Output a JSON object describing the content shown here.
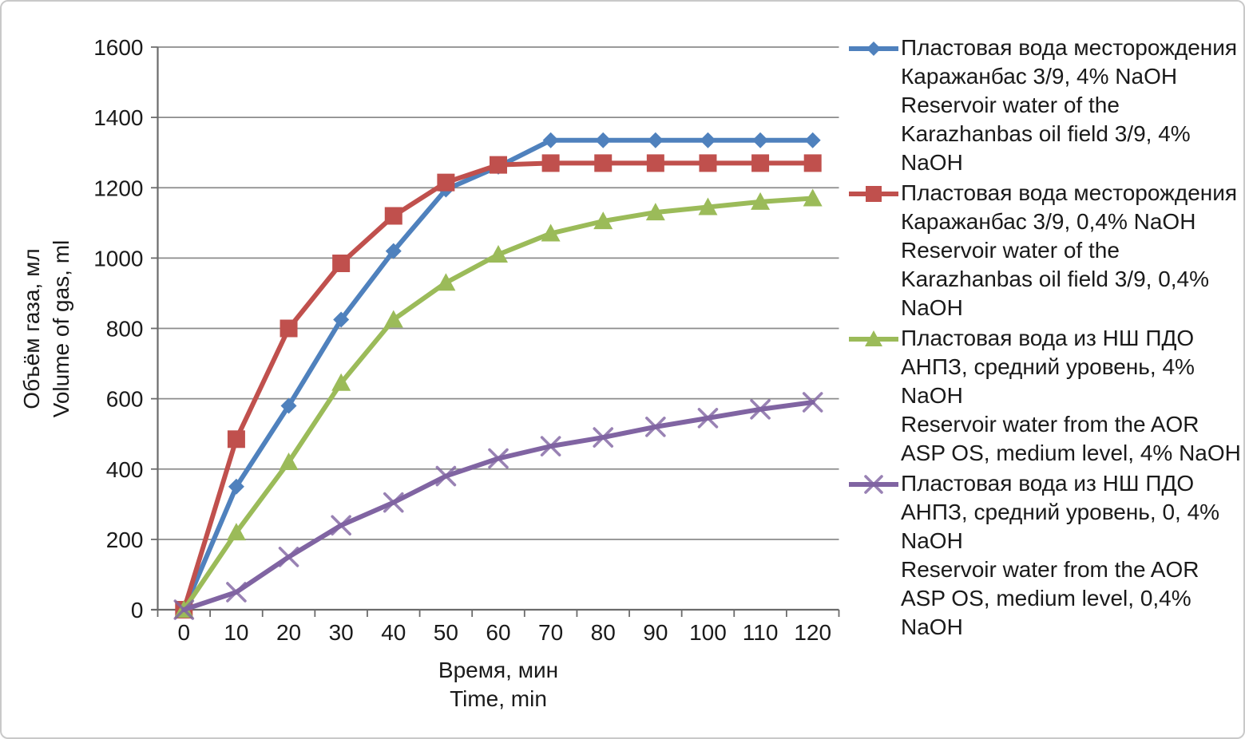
{
  "chart_data": {
    "type": "line",
    "title": "",
    "xlabel_ru": "Время, мин",
    "xlabel_en": "Time, min",
    "ylabel_ru": "Объём газа, мл",
    "ylabel_en": "Volume of gas, ml",
    "x": [
      0,
      10,
      20,
      30,
      40,
      50,
      60,
      70,
      80,
      90,
      100,
      110,
      120
    ],
    "yticks": [
      0,
      200,
      400,
      600,
      800,
      1000,
      1200,
      1400,
      1600
    ],
    "ylim": [
      0,
      1600
    ],
    "xlim_categories": 13,
    "grid": "horizontal",
    "legend_position": "right",
    "colors": {
      "grid": "#8c8c8c",
      "axis": "#6b6b6b",
      "text": "#1a1a1a"
    },
    "series": [
      {
        "name_ru": "Пластовая вода месторождения Каражанбас 3/9, 4% NaOH",
        "name_en": "Reservoir water of the Karazhanbas oil field 3/9, 4% NaOH",
        "color": "#4F81BD",
        "marker": "diamond",
        "values": [
          0,
          350,
          580,
          825,
          1020,
          1195,
          1260,
          1335,
          1335,
          1335,
          1335,
          1335,
          1335
        ]
      },
      {
        "name_ru": "Пластовая вода месторождения Каражанбас 3/9, 0,4% NaOH",
        "name_en": "Reservoir water of the Karazhanbas oil field 3/9, 0,4% NaOH",
        "color": "#C0504D",
        "marker": "square",
        "values": [
          0,
          485,
          800,
          985,
          1120,
          1215,
          1265,
          1270,
          1270,
          1270,
          1270,
          1270,
          1270
        ]
      },
      {
        "name_ru": "Пластовая вода из НШ ПДО АНПЗ, средний уровень, 4% NaOH",
        "name_en": "Reservoir water from the AOR ASP OS, medium level, 4% NaOH",
        "color": "#9BBB59",
        "marker": "triangle",
        "values": [
          0,
          220,
          420,
          645,
          825,
          930,
          1010,
          1070,
          1105,
          1130,
          1145,
          1160,
          1170
        ]
      },
      {
        "name_ru": "Пластовая вода из НШ ПДО АНПЗ, средний уровень, 0, 4% NaOH",
        "name_en": "Reservoir water from the AOR ASP OS, medium level, 0,4% NaOH",
        "color": "#8064A2",
        "marker": "x",
        "values": [
          0,
          50,
          150,
          240,
          305,
          380,
          430,
          465,
          490,
          520,
          545,
          570,
          590
        ]
      }
    ]
  }
}
